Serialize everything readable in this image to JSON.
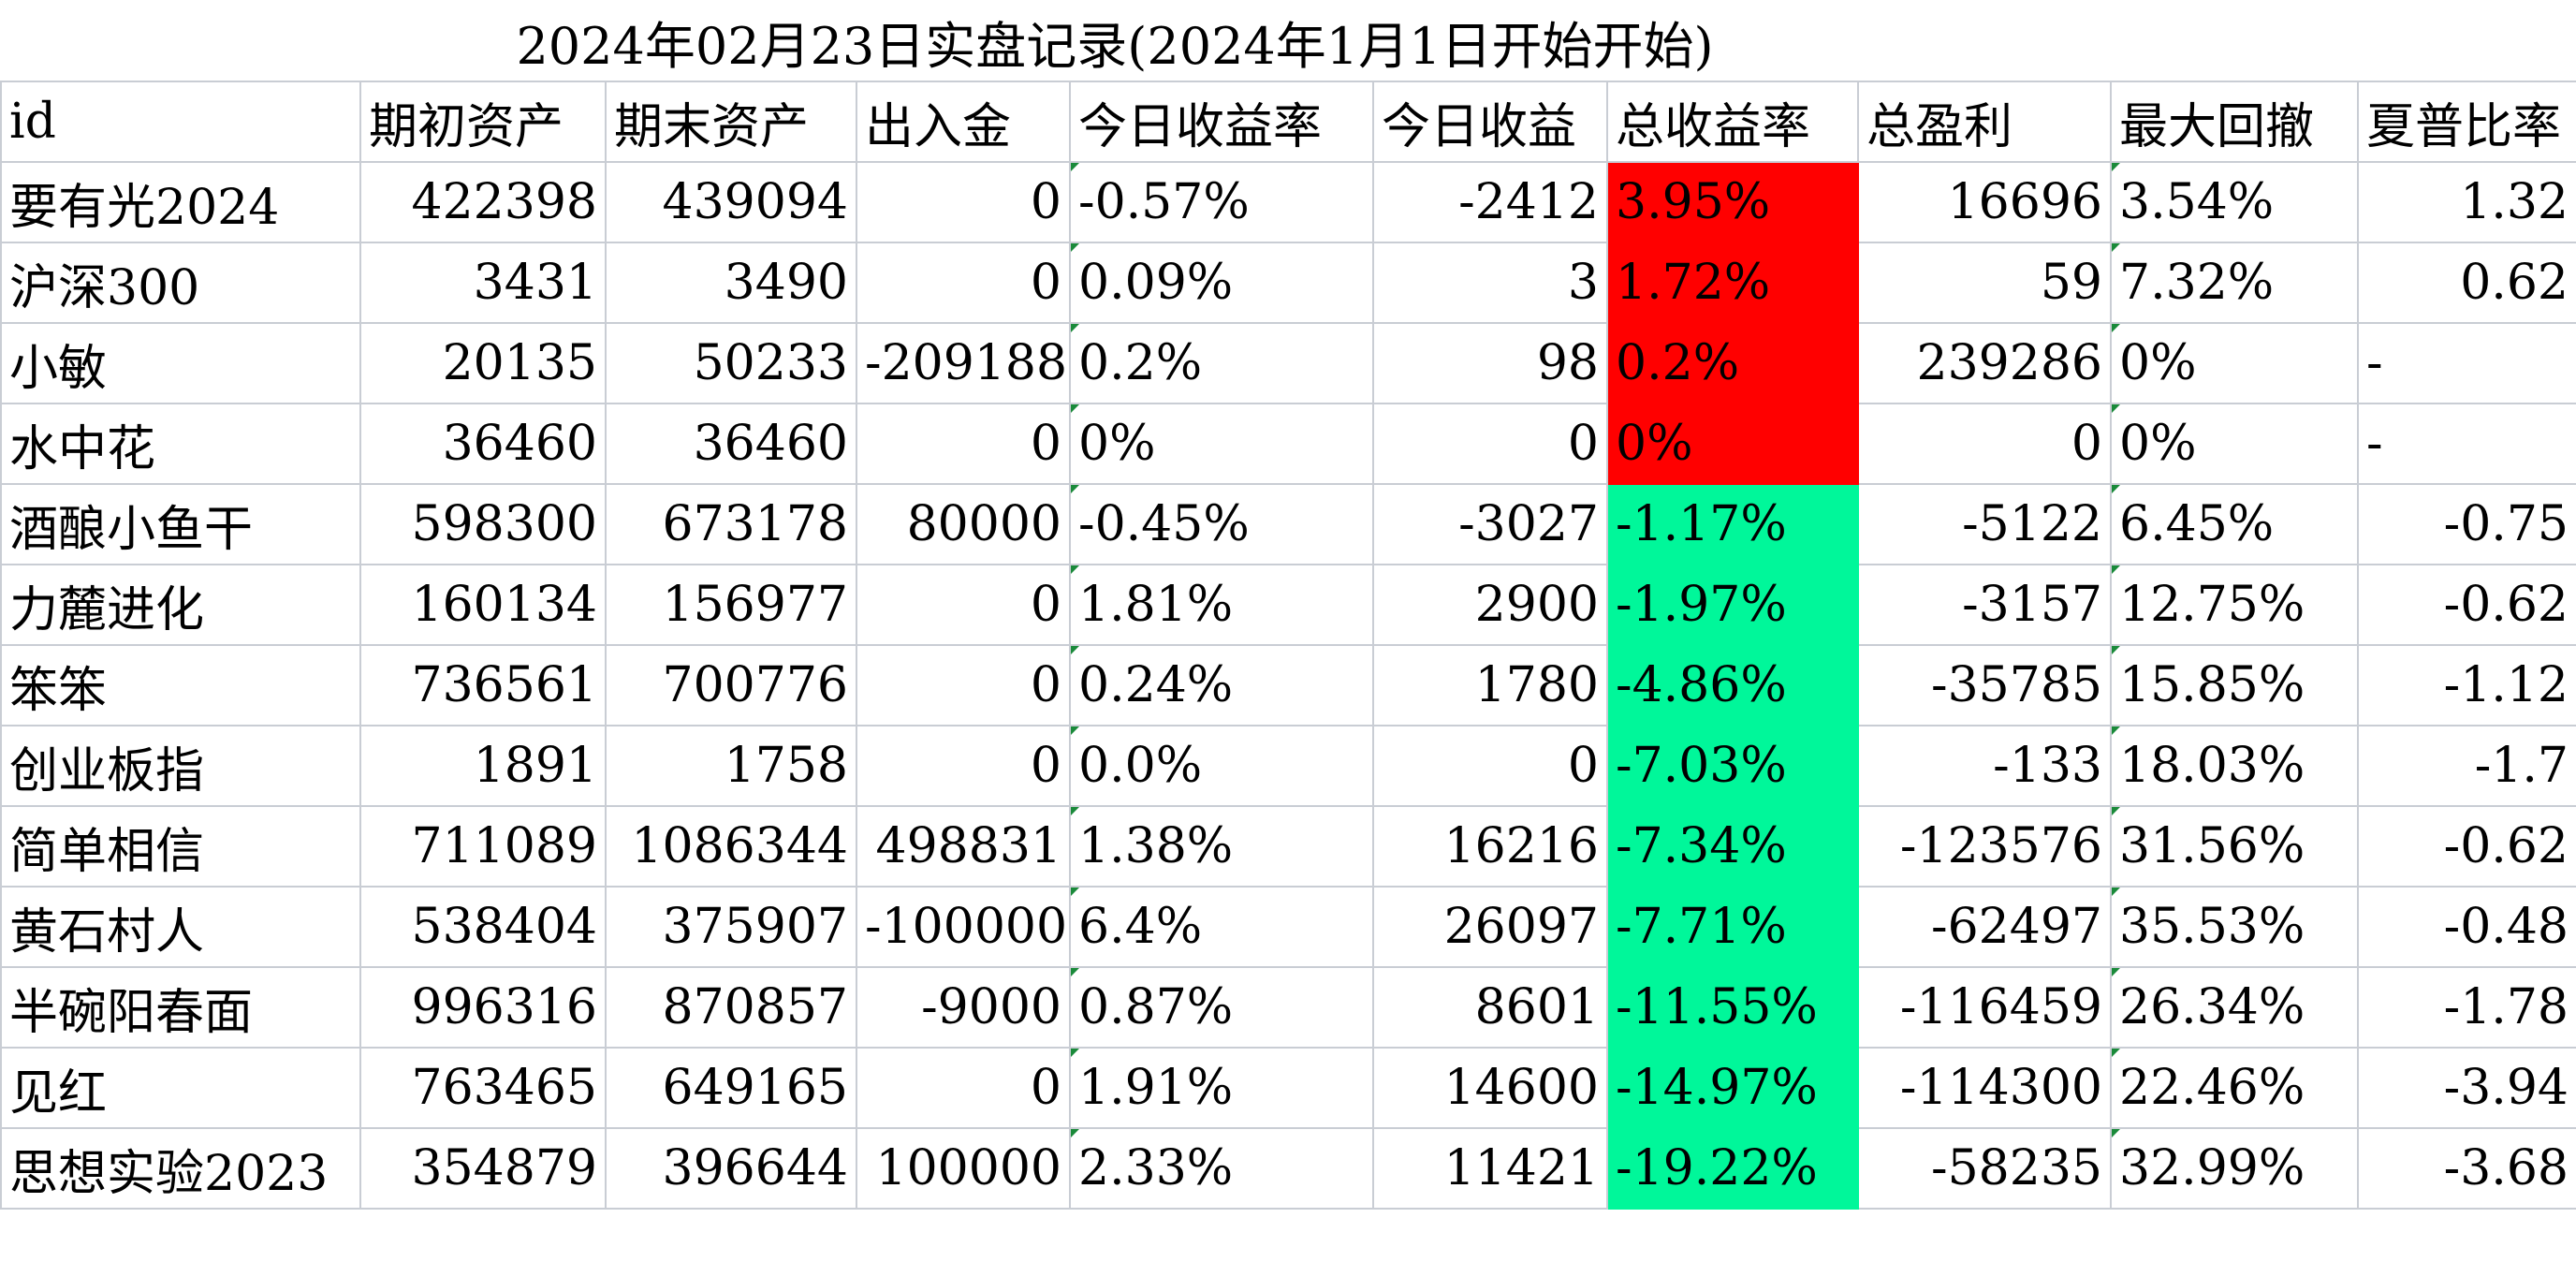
{
  "title": "2024年02月23日实盘记录(2024年1月1日开始开始)",
  "colors": {
    "positive_fill": "#ff0000",
    "negative_fill": "#00f79a",
    "grid_line": "#c9cdd4"
  },
  "headers": [
    "id",
    "期初资产",
    "期末资产",
    "出入金",
    "今日收益率",
    "今日收益",
    "总收益率",
    "总盈利",
    "最大回撤",
    "夏普比率"
  ],
  "rows": [
    {
      "id": "要有光2024",
      "start": "422398",
      "end": "439094",
      "flow": "0",
      "day_rate": "-0.57%",
      "day_profit": "-2412",
      "total_rate": "3.95%",
      "total_profit": "16696",
      "drawdown": "3.54%",
      "sharpe": "1.32"
    },
    {
      "id": "沪深300",
      "start": "3431",
      "end": "3490",
      "flow": "0",
      "day_rate": "0.09%",
      "day_profit": "3",
      "total_rate": "1.72%",
      "total_profit": "59",
      "drawdown": "7.32%",
      "sharpe": "0.62"
    },
    {
      "id": "小敏",
      "start": "20135",
      "end": "50233",
      "flow": "-209188",
      "day_rate": "0.2%",
      "day_profit": "98",
      "total_rate": "0.2%",
      "total_profit": "239286",
      "drawdown": "0%",
      "sharpe": "-"
    },
    {
      "id": "水中花",
      "start": "36460",
      "end": "36460",
      "flow": "0",
      "day_rate": "0%",
      "day_profit": "0",
      "total_rate": "0%",
      "total_profit": "0",
      "drawdown": "0%",
      "sharpe": "-"
    },
    {
      "id": "酒酿小鱼干",
      "start": "598300",
      "end": "673178",
      "flow": "80000",
      "day_rate": "-0.45%",
      "day_profit": "-3027",
      "total_rate": "-1.17%",
      "total_profit": "-5122",
      "drawdown": "6.45%",
      "sharpe": "-0.75"
    },
    {
      "id": "力麓进化",
      "start": "160134",
      "end": "156977",
      "flow": "0",
      "day_rate": "1.81%",
      "day_profit": "2900",
      "total_rate": "-1.97%",
      "total_profit": "-3157",
      "drawdown": "12.75%",
      "sharpe": "-0.62"
    },
    {
      "id": "笨笨",
      "start": "736561",
      "end": "700776",
      "flow": "0",
      "day_rate": "0.24%",
      "day_profit": "1780",
      "total_rate": "-4.86%",
      "total_profit": "-35785",
      "drawdown": "15.85%",
      "sharpe": "-1.12"
    },
    {
      "id": "创业板指",
      "start": "1891",
      "end": "1758",
      "flow": "0",
      "day_rate": "0.0%",
      "day_profit": "0",
      "total_rate": "-7.03%",
      "total_profit": "-133",
      "drawdown": "18.03%",
      "sharpe": "-1.7"
    },
    {
      "id": "简单相信",
      "start": "711089",
      "end": "1086344",
      "flow": "498831",
      "day_rate": "1.38%",
      "day_profit": "16216",
      "total_rate": "-7.34%",
      "total_profit": "-123576",
      "drawdown": "31.56%",
      "sharpe": "-0.62"
    },
    {
      "id": "黄石村人",
      "start": "538404",
      "end": "375907",
      "flow": "-100000",
      "day_rate": "6.4%",
      "day_profit": "26097",
      "total_rate": "-7.71%",
      "total_profit": "-62497",
      "drawdown": "35.53%",
      "sharpe": "-0.48"
    },
    {
      "id": "半碗阳春面",
      "start": "996316",
      "end": "870857",
      "flow": "-9000",
      "day_rate": "0.87%",
      "day_profit": "8601",
      "total_rate": "-11.55%",
      "total_profit": "-116459",
      "drawdown": "26.34%",
      "sharpe": "-1.78"
    },
    {
      "id": "见红",
      "start": "763465",
      "end": "649165",
      "flow": "0",
      "day_rate": "1.91%",
      "day_profit": "14600",
      "total_rate": "-14.97%",
      "total_profit": "-114300",
      "drawdown": "22.46%",
      "sharpe": "-3.94"
    },
    {
      "id": "思想实验2023",
      "start": "354879",
      "end": "396644",
      "flow": "100000",
      "day_rate": "2.33%",
      "day_profit": "11421",
      "total_rate": "-19.22%",
      "total_profit": "-58235",
      "drawdown": "32.99%",
      "sharpe": "-3.68"
    }
  ]
}
